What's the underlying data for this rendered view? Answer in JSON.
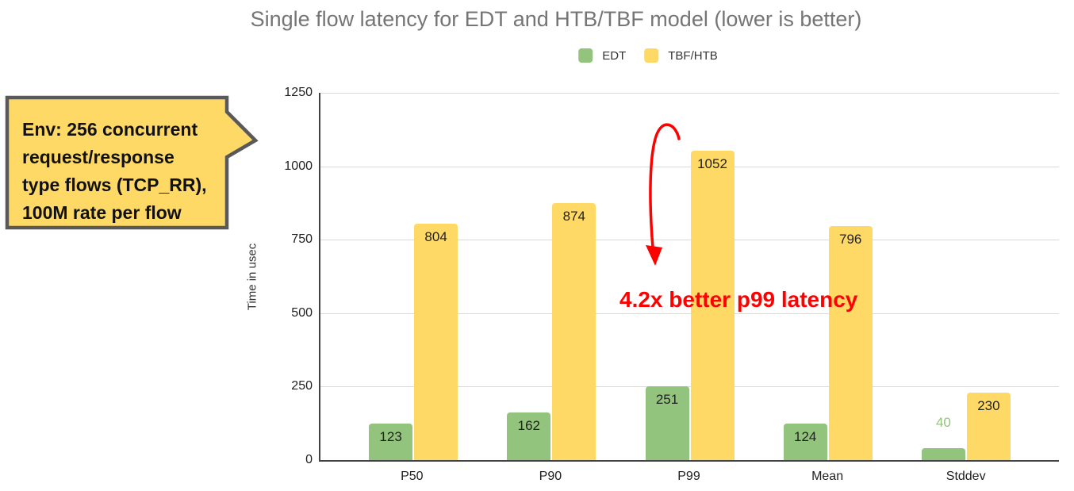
{
  "chart_data": {
    "type": "bar",
    "title": "Single flow latency for EDT and HTB/TBF model (lower is better)",
    "categories": [
      "P50",
      "P90",
      "P99",
      "Mean",
      "Stddev"
    ],
    "series": [
      {
        "name": "EDT",
        "color": "#93c47d",
        "values": [
          123,
          162,
          251,
          124,
          40
        ]
      },
      {
        "name": "TBF/HTB",
        "color": "#ffd966",
        "values": [
          804,
          874,
          1052,
          796,
          230
        ]
      }
    ],
    "xlabel": "",
    "ylabel": "Time in usec",
    "ylim": [
      0,
      1250
    ],
    "yticks": [
      0,
      250,
      500,
      750,
      1000,
      1250
    ],
    "grid": true,
    "legend_position": "top",
    "bar_label_color": "#212121"
  },
  "annotations": {
    "callout": {
      "text": "Env: 256 concurrent\nrequest/response\ntype flows (TCP_RR),\n100M rate per flow",
      "fill": "#ffd966",
      "border": "#595959"
    },
    "highlight": {
      "text": "4.2x better p99 latency",
      "color": "#ff0000"
    }
  },
  "colors": {
    "title": "#757575",
    "axis_line": "#424242",
    "gridline": "#d9d9d9",
    "tick_label": "#212121"
  }
}
